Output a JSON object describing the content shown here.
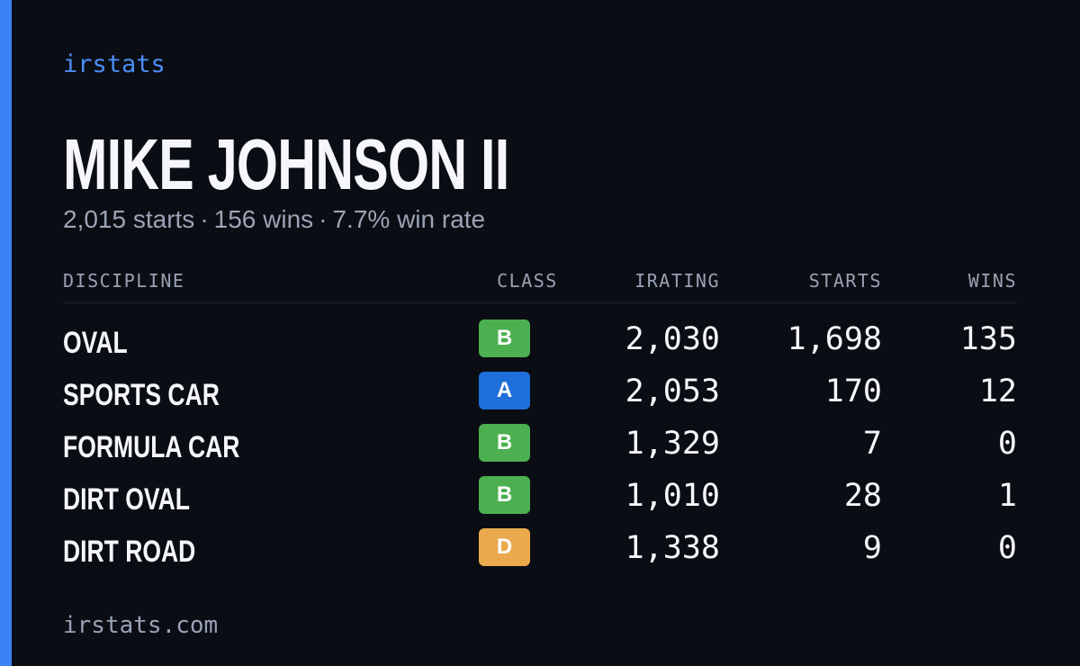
{
  "brand": "irstats",
  "driver": {
    "name": "MIKE JOHNSON II",
    "starts": "2,015 starts",
    "wins": "156 wins",
    "win_rate": "7.7% win rate",
    "separator": "·"
  },
  "table": {
    "headers": {
      "discipline": "DISCIPLINE",
      "class": "CLASS",
      "irating": "IRATING",
      "starts": "STARTS",
      "wins": "WINS"
    },
    "rows": [
      {
        "discipline": "OVAL",
        "class": "B",
        "irating": "2,030",
        "starts": "1,698",
        "wins": "135"
      },
      {
        "discipline": "SPORTS CAR",
        "class": "A",
        "irating": "2,053",
        "starts": "170",
        "wins": "12"
      },
      {
        "discipline": "FORMULA CAR",
        "class": "B",
        "irating": "1,329",
        "starts": "7",
        "wins": "0"
      },
      {
        "discipline": "DIRT OVAL",
        "class": "B",
        "irating": "1,010",
        "starts": "28",
        "wins": "1"
      },
      {
        "discipline": "DIRT ROAD",
        "class": "D",
        "irating": "1,338",
        "starts": "9",
        "wins": "0"
      }
    ]
  },
  "colors": {
    "accent": "#3b82f6",
    "class_A": "#1e6fd9",
    "class_B": "#4caf50",
    "class_D": "#e9a94c"
  },
  "footer": "irstats.com"
}
